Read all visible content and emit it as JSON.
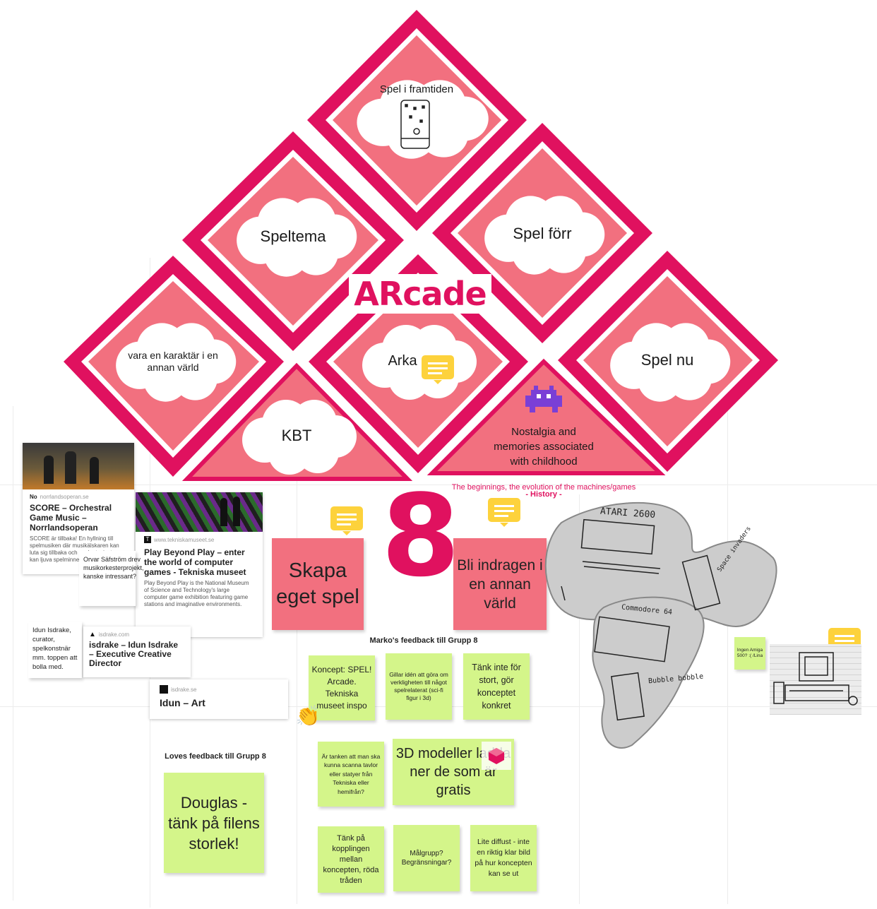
{
  "board": {
    "title": "ARcade",
    "group_number": "8",
    "subtitle": "The beginnings, the evolution of the machines/games",
    "subtitle_tag": "- History -"
  },
  "diamonds": {
    "top": "Spel i framtiden",
    "left": "Speltema",
    "right": "Spel förr",
    "far_left": "vara en karaktär i en annan värld",
    "center": "Arka",
    "far_right": "Spel nu",
    "bottom_left": "KBT",
    "bottom_right": "Nostalgia and memories associated with childhood"
  },
  "links": [
    {
      "source": "norrlandsoperan.se",
      "title": "SCORE – Orchestral Game Music – Norrlandsoperan",
      "desc": "SCORE är tillbaka! En hyllning till spelmusiken där musikälskaren kan luta sig tillbaka och spelentusiaster kan ljuva spelminnen."
    },
    {
      "source": "www.tekniskamuseet.se",
      "title": "Play Beyond Play – enter the world of computer games - Tekniska museet",
      "desc": "Play Beyond Play is the National Museum of Science and Technology's large computer game exhibition featuring game stations and imaginative environments."
    },
    {
      "source": "isdrake.com",
      "title": "isdrake – Idun Isdrake – Executive Creative Director",
      "desc": ""
    },
    {
      "source": "isdrake.se",
      "title": "Idun – Art",
      "desc": ""
    }
  ],
  "small_notes": {
    "orvar": "Orvar Säfström drev musikorkesterprojekt, kanske intressant?",
    "idun": "Idun Isdrake, curator, spelkonstnär mm. toppen att bolla med.",
    "amiga": "Ingen Amiga 500? :( /Lina"
  },
  "pink_notes": {
    "left": "Skapa eget spel",
    "right": "Bli indragen i en annan värld"
  },
  "sketch_labels": {
    "atari": "ATARI 2600",
    "space": "Space invaders",
    "commodore": "Commodore 64",
    "bubble": "Bubble bobble"
  },
  "feedback": {
    "marko_title": "Marko's feedback till Grupp 8",
    "loves_title": "Loves feedback till Grupp 8",
    "douglas": "Douglas - tänk på filens storlek!",
    "notes": [
      "Koncept: SPEL! Arcade. Tekniska museet inspo",
      "Gillar idén att göra om verkligheten till något spelrelaterat (sci-fi figur i 3d)",
      "Tänk inte för stort, gör konceptet konkret",
      "Är tanken att man ska kunna scanna tavlor eller statyer från Tekniska eller hemifrån?",
      "3D modeller ladda ner de som är gratis",
      "Tänk på kopplingen mellan koncepten, röda tråden",
      "Målgrupp? Begränsningar?",
      "Lite diffust - inte en riktig klar bild på hur koncepten kan se ut"
    ]
  },
  "colors": {
    "magenta": "#e0115f",
    "pink_fill": "#f2707f",
    "green_note": "#d4f58a",
    "comment_yellow": "#fdd23c"
  }
}
